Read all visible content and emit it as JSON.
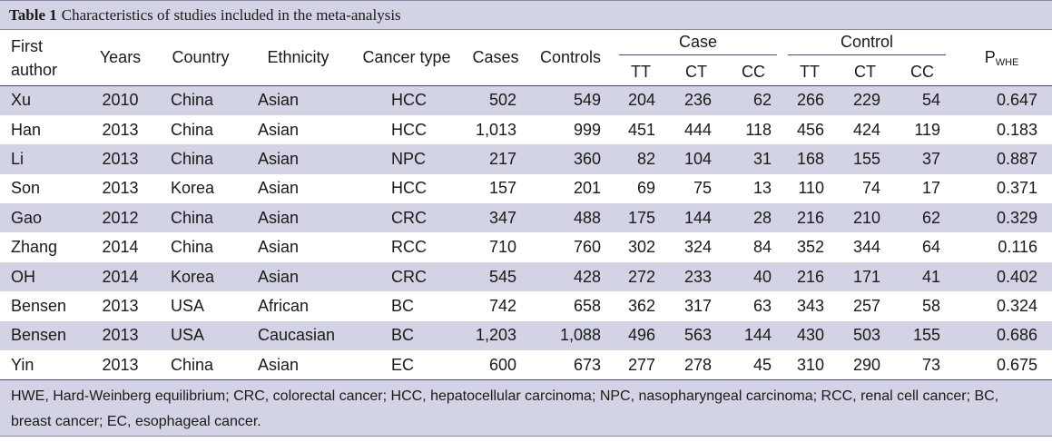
{
  "table": {
    "number": "Table 1",
    "caption": "Characteristics of studies included in the meta-analysis",
    "headers": {
      "first_author": "First author",
      "years": "Years",
      "country": "Country",
      "ethnicity": "Ethnicity",
      "cancer_type": "Cancer type",
      "cases": "Cases",
      "controls": "Controls",
      "case_group": "Case",
      "control_group": "Control",
      "tt": "TT",
      "ct": "CT",
      "cc": "CC",
      "p_main": "P",
      "p_sub": "WHE"
    },
    "rows": [
      {
        "author": "Xu",
        "year": "2010",
        "country": "China",
        "ethnicity": "Asian",
        "cancer": "HCC",
        "cases": "502",
        "controls": "549",
        "case_tt": "204",
        "case_ct": "236",
        "case_cc": "62",
        "ctrl_tt": "266",
        "ctrl_ct": "229",
        "ctrl_cc": "54",
        "p": "0.647"
      },
      {
        "author": "Han",
        "year": "2013",
        "country": "China",
        "ethnicity": "Asian",
        "cancer": "HCC",
        "cases": "1,013",
        "controls": "999",
        "case_tt": "451",
        "case_ct": "444",
        "case_cc": "118",
        "ctrl_tt": "456",
        "ctrl_ct": "424",
        "ctrl_cc": "119",
        "p": "0.183"
      },
      {
        "author": "Li",
        "year": "2013",
        "country": "China",
        "ethnicity": "Asian",
        "cancer": "NPC",
        "cases": "217",
        "controls": "360",
        "case_tt": "82",
        "case_ct": "104",
        "case_cc": "31",
        "ctrl_tt": "168",
        "ctrl_ct": "155",
        "ctrl_cc": "37",
        "p": "0.887"
      },
      {
        "author": "Son",
        "year": "2013",
        "country": "Korea",
        "ethnicity": "Asian",
        "cancer": "HCC",
        "cases": "157",
        "controls": "201",
        "case_tt": "69",
        "case_ct": "75",
        "case_cc": "13",
        "ctrl_tt": "110",
        "ctrl_ct": "74",
        "ctrl_cc": "17",
        "p": "0.371"
      },
      {
        "author": "Gao",
        "year": "2012",
        "country": "China",
        "ethnicity": "Asian",
        "cancer": "CRC",
        "cases": "347",
        "controls": "488",
        "case_tt": "175",
        "case_ct": "144",
        "case_cc": "28",
        "ctrl_tt": "216",
        "ctrl_ct": "210",
        "ctrl_cc": "62",
        "p": "0.329"
      },
      {
        "author": "Zhang",
        "year": "2014",
        "country": "China",
        "ethnicity": "Asian",
        "cancer": "RCC",
        "cases": "710",
        "controls": "760",
        "case_tt": "302",
        "case_ct": "324",
        "case_cc": "84",
        "ctrl_tt": "352",
        "ctrl_ct": "344",
        "ctrl_cc": "64",
        "p": "0.116"
      },
      {
        "author": "OH",
        "year": "2014",
        "country": "Korea",
        "ethnicity": "Asian",
        "cancer": "CRC",
        "cases": "545",
        "controls": "428",
        "case_tt": "272",
        "case_ct": "233",
        "case_cc": "40",
        "ctrl_tt": "216",
        "ctrl_ct": "171",
        "ctrl_cc": "41",
        "p": "0.402"
      },
      {
        "author": "Bensen",
        "year": "2013",
        "country": "USA",
        "ethnicity": "African",
        "cancer": "BC",
        "cases": "742",
        "controls": "658",
        "case_tt": "362",
        "case_ct": "317",
        "case_cc": "63",
        "ctrl_tt": "343",
        "ctrl_ct": "257",
        "ctrl_cc": "58",
        "p": "0.324"
      },
      {
        "author": "Bensen",
        "year": "2013",
        "country": "USA",
        "ethnicity": "Caucasian",
        "cancer": "BC",
        "cases": "1,203",
        "controls": "1,088",
        "case_tt": "496",
        "case_ct": "563",
        "case_cc": "144",
        "ctrl_tt": "430",
        "ctrl_ct": "503",
        "ctrl_cc": "155",
        "p": "0.686"
      },
      {
        "author": "Yin",
        "year": "2013",
        "country": "China",
        "ethnicity": "Asian",
        "cancer": "EC",
        "cases": "600",
        "controls": "673",
        "case_tt": "277",
        "case_ct": "278",
        "case_cc": "45",
        "ctrl_tt": "310",
        "ctrl_ct": "290",
        "ctrl_cc": "73",
        "p": "0.675"
      }
    ],
    "footnote": "HWE, Hard-Weinberg equilibrium; CRC, colorectal cancer; HCC, hepatocellular carcinoma; NPC, nasopharyngeal carcinoma; RCC, renal cell cancer; BC, breast cancer; EC, esophageal cancer."
  },
  "colors": {
    "shade": "#d2d3e4",
    "rule": "#4a4a6a"
  }
}
